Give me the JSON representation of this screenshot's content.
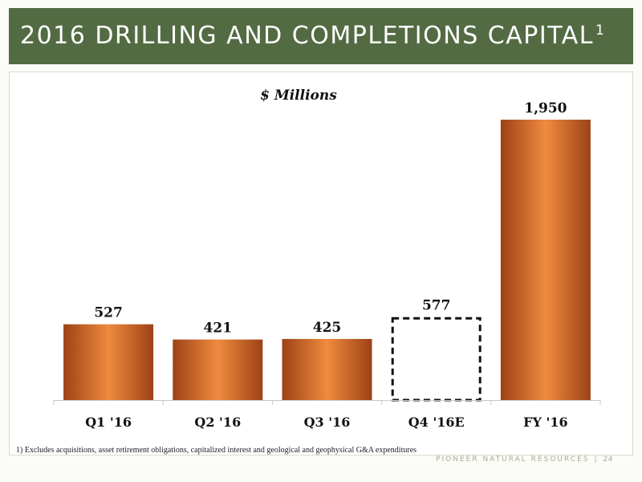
{
  "header": {
    "title": "2016 DRILLING AND COMPLETIONS CAPITAL",
    "superscript": "1"
  },
  "chart_data": {
    "type": "bar",
    "title": "$ Millions",
    "categories": [
      "Q1 '16",
      "Q2 '16",
      "Q3 '16",
      "Q4 '16E",
      "FY '16"
    ],
    "values": [
      527,
      421,
      425,
      577,
      1950
    ],
    "value_labels": [
      "527",
      "421",
      "425",
      "577",
      "1,950"
    ],
    "estimated": [
      false,
      false,
      false,
      true,
      false
    ],
    "ylim": [
      0,
      2000
    ],
    "grid": false,
    "colors": {
      "bar_edge": "#9c4216",
      "bar_center": "#f08a3e",
      "estimate_outline": "#111111"
    }
  },
  "footnote": "1)  Excludes acquisitions, asset retirement obligations, capitalized interest and geological and geophysical G&A expenditures",
  "footer": {
    "company": "PIONEER NATURAL RESOURCES",
    "separator": "|",
    "page": "24"
  }
}
